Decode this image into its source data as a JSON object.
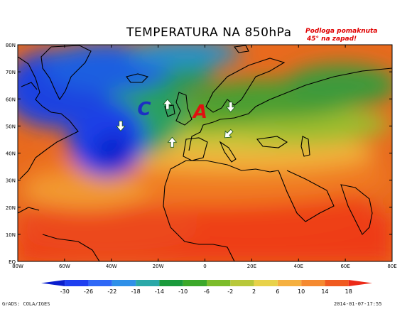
{
  "map": {
    "title": "TEMPERATURA NA 850hPa",
    "note_line1": "Podloga pomaknuta",
    "note_line2": "45° na zapad!",
    "lat_labels": [
      "80N",
      "70N",
      "60N",
      "50N",
      "40N",
      "30N",
      "20N",
      "10N",
      "EQ"
    ],
    "lon_labels": [
      "80W",
      "60W",
      "40W",
      "20W",
      "0",
      "20E",
      "40E",
      "60E",
      "80E"
    ],
    "extent": {
      "lon": [
        -80,
        80
      ],
      "lat": [
        0,
        80
      ]
    },
    "markers": [
      {
        "letter": "C",
        "lon": -26,
        "lat": 54,
        "color": "#1c2fc4"
      },
      {
        "letter": "A",
        "lon": -2,
        "lat": 53,
        "color": "#e01010"
      }
    ],
    "arrows": [
      {
        "direction": "down",
        "lon": -36,
        "lat": 50
      },
      {
        "direction": "up",
        "lon": -16,
        "lat": 58
      },
      {
        "direction": "up",
        "lon": -14,
        "lat": 44
      },
      {
        "direction": "down",
        "lon": 11,
        "lat": 57
      },
      {
        "direction": "down-left",
        "lon": 10,
        "lat": 47
      }
    ]
  },
  "colorbar": {
    "labels": [
      "-30",
      "-26",
      "-22",
      "-18",
      "-14",
      "-10",
      "-6",
      "-2",
      "2",
      "6",
      "10",
      "14",
      "18"
    ],
    "colors": [
      "#0a1ecd",
      "#1f3ff0",
      "#2f68f6",
      "#2f90e8",
      "#2aa8a8",
      "#1a9a3c",
      "#3ca82a",
      "#7cbc2a",
      "#b8c83a",
      "#e8d24a",
      "#f5b040",
      "#f58a30",
      "#f05a20",
      "#ec2a18"
    ]
  },
  "footer": {
    "left": "GrADS: COLA/IGES",
    "right": "2014-01-07-17:55"
  }
}
